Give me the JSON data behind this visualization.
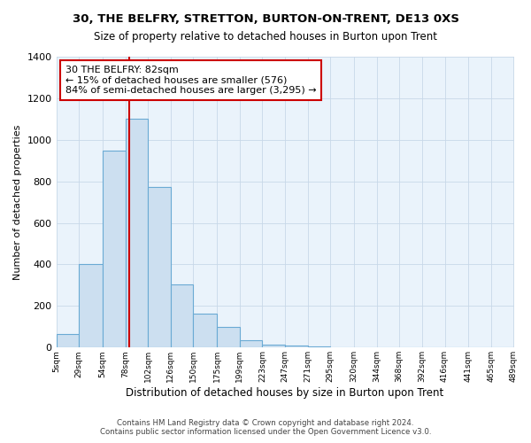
{
  "title": "30, THE BELFRY, STRETTON, BURTON-ON-TRENT, DE13 0XS",
  "subtitle": "Size of property relative to detached houses in Burton upon Trent",
  "xlabel": "Distribution of detached houses by size in Burton upon Trent",
  "ylabel": "Number of detached properties",
  "footer1": "Contains HM Land Registry data © Crown copyright and database right 2024.",
  "footer2": "Contains public sector information licensed under the Open Government Licence v3.0.",
  "bin_edges": [
    5,
    29,
    54,
    78,
    102,
    126,
    150,
    175,
    199,
    223,
    247,
    271,
    295,
    320,
    344,
    368,
    392,
    416,
    441,
    465,
    489
  ],
  "bin_labels": [
    "5sqm",
    "29sqm",
    "54sqm",
    "78sqm",
    "102sqm",
    "126sqm",
    "150sqm",
    "175sqm",
    "199sqm",
    "223sqm",
    "247sqm",
    "271sqm",
    "295sqm",
    "320sqm",
    "344sqm",
    "368sqm",
    "392sqm",
    "416sqm",
    "441sqm",
    "465sqm",
    "489sqm"
  ],
  "counts": [
    65,
    400,
    950,
    1100,
    775,
    305,
    165,
    100,
    35,
    15,
    10,
    5,
    3,
    2,
    1,
    1,
    1,
    0,
    0,
    0
  ],
  "bar_facecolor": "#ccdff0",
  "bar_edgecolor": "#6aaad4",
  "vline_x": 82,
  "vline_color": "#cc0000",
  "annotation_text": "30 THE BELFRY: 82sqm\n← 15% of detached houses are smaller (576)\n84% of semi-detached houses are larger (3,295) →",
  "annotation_box_edgecolor": "#cc0000",
  "annotation_box_facecolor": "#ffffff",
  "ylim": [
    0,
    1400
  ],
  "yticks": [
    0,
    200,
    400,
    600,
    800,
    1000,
    1200,
    1400
  ],
  "bg_color": "#ffffff",
  "grid_color": "#c8d8e8",
  "plot_bg_color": "#eaf3fb"
}
